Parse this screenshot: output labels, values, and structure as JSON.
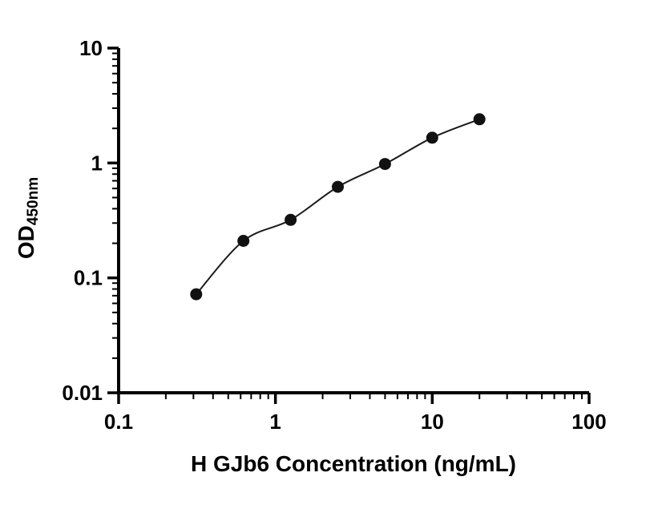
{
  "chart": {
    "ylabel_main": "OD",
    "ylabel_sub": "450nm"
  },
  "chart_data": {
    "type": "scatter",
    "title": "",
    "xlabel": "H GJb6 Concentration (ng/mL)",
    "ylabel": "OD450nm",
    "xscale": "log",
    "yscale": "log",
    "xlim": [
      0.1,
      100
    ],
    "ylim": [
      0.01,
      10
    ],
    "x_ticks": [
      0.1,
      1,
      10,
      100
    ],
    "x_tick_labels": [
      "0.1",
      "1",
      "10",
      "100"
    ],
    "y_ticks": [
      0.01,
      0.1,
      1,
      10
    ],
    "y_tick_labels": [
      "0.01",
      "0.1",
      "1",
      "10"
    ],
    "x": [
      0.3125,
      0.625,
      1.25,
      2.5,
      5,
      10,
      20
    ],
    "y": [
      0.072,
      0.21,
      0.32,
      0.62,
      0.98,
      1.66,
      2.4
    ],
    "fit_line": true,
    "grid": false,
    "legend": "none",
    "marker_color": "#111111",
    "line_color": "#1a1a1a",
    "axis_color": "#000000"
  }
}
